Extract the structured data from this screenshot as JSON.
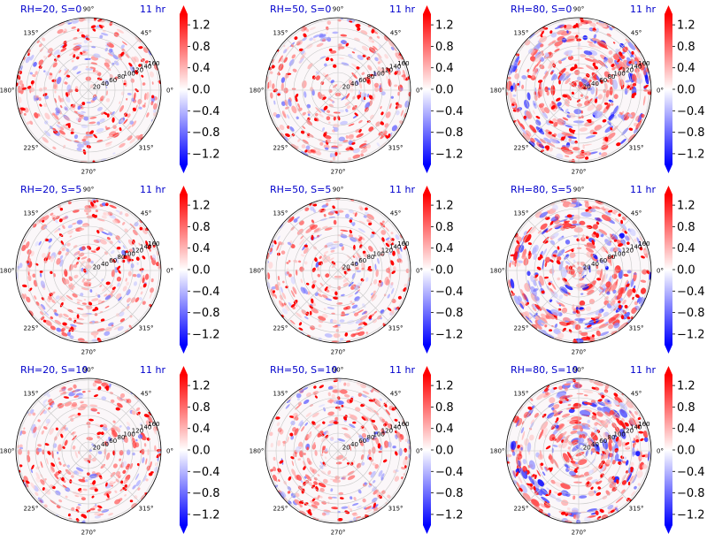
{
  "chart_data": [
    {
      "type": "polar-heatmap",
      "title_left": "RH=20, S=0",
      "title_right": "11 hr",
      "angle_ticks": [
        "0°",
        "45°",
        "90°",
        "135°",
        "180°",
        "225°",
        "270°",
        "315°"
      ],
      "radial_ticks": [
        "20",
        "40",
        "60",
        "80",
        "100",
        "120",
        "140",
        "160"
      ],
      "colorbar": {
        "ticks": [
          "1.2",
          "0.8",
          "0.4",
          "0.0",
          "−0.4",
          "−0.8",
          "−1.2"
        ],
        "range": [
          -1.4,
          1.4
        ],
        "cmap": "bwr",
        "extend": "both"
      },
      "intensity": 0.55
    },
    {
      "type": "polar-heatmap",
      "title_left": "RH=50, S=0",
      "title_right": "11 hr",
      "angle_ticks": [
        "0°",
        "45°",
        "90°",
        "135°",
        "180°",
        "225°",
        "270°",
        "315°"
      ],
      "radial_ticks": [
        "20",
        "40",
        "60",
        "80",
        "100",
        "120",
        "140",
        "160"
      ],
      "colorbar": {
        "ticks": [
          "1.2",
          "0.8",
          "0.4",
          "0.0",
          "−0.4",
          "−0.8",
          "−1.2"
        ],
        "range": [
          -1.4,
          1.4
        ],
        "cmap": "bwr",
        "extend": "both"
      },
      "intensity": 0.6
    },
    {
      "type": "polar-heatmap",
      "title_left": "RH=80, S=0",
      "title_right": "11 hr",
      "angle_ticks": [
        "0°",
        "45°",
        "90°",
        "135°",
        "180°",
        "225°",
        "270°",
        "315°"
      ],
      "radial_ticks": [
        "20",
        "40",
        "60",
        "80",
        "100",
        "120",
        "140",
        "160"
      ],
      "colorbar": {
        "ticks": [
          "1.2",
          "0.8",
          "0.4",
          "0.0",
          "−0.4",
          "−0.8",
          "−1.2"
        ],
        "range": [
          -1.4,
          1.4
        ],
        "cmap": "bwr",
        "extend": "both"
      },
      "intensity": 1.0
    },
    {
      "type": "polar-heatmap",
      "title_left": "RH=20, S=5",
      "title_right": "11 hr",
      "angle_ticks": [
        "0°",
        "45°",
        "90°",
        "135°",
        "180°",
        "225°",
        "270°",
        "315°"
      ],
      "radial_ticks": [
        "20",
        "40",
        "60",
        "80",
        "100",
        "120",
        "140",
        "160"
      ],
      "colorbar": {
        "ticks": [
          "1.2",
          "0.8",
          "0.4",
          "0.0",
          "−0.4",
          "−0.8",
          "−1.2"
        ],
        "range": [
          -1.4,
          1.4
        ],
        "cmap": "bwr",
        "extend": "both"
      },
      "intensity": 0.55
    },
    {
      "type": "polar-heatmap",
      "title_left": "RH=50, S=5",
      "title_right": "11 hr",
      "angle_ticks": [
        "0°",
        "45°",
        "90°",
        "135°",
        "180°",
        "225°",
        "270°",
        "315°"
      ],
      "radial_ticks": [
        "20",
        "40",
        "60",
        "80",
        "100",
        "120",
        "140",
        "160"
      ],
      "colorbar": {
        "ticks": [
          "1.2",
          "0.8",
          "0.4",
          "0.0",
          "−0.4",
          "−0.8",
          "−1.2"
        ],
        "range": [
          -1.4,
          1.4
        ],
        "cmap": "bwr",
        "extend": "both"
      },
      "intensity": 0.6
    },
    {
      "type": "polar-heatmap",
      "title_left": "RH=80, S=5",
      "title_right": "11 hr",
      "angle_ticks": [
        "0°",
        "45°",
        "90°",
        "135°",
        "180°",
        "225°",
        "270°",
        "315°"
      ],
      "radial_ticks": [
        "20",
        "40",
        "60",
        "80",
        "100",
        "120",
        "140",
        "160"
      ],
      "colorbar": {
        "ticks": [
          "1.2",
          "0.8",
          "0.4",
          "0.0",
          "−0.4",
          "−0.8",
          "−1.2"
        ],
        "range": [
          -1.4,
          1.4
        ],
        "cmap": "bwr",
        "extend": "both"
      },
      "intensity": 1.0
    },
    {
      "type": "polar-heatmap",
      "title_left": "RH=20, S=10",
      "title_right": "11 hr",
      "angle_ticks": [
        "0°",
        "45°",
        "90°",
        "135°",
        "180°",
        "225°",
        "270°",
        "315°"
      ],
      "radial_ticks": [
        "20",
        "40",
        "60",
        "80",
        "100",
        "120",
        "140",
        "160"
      ],
      "colorbar": {
        "ticks": [
          "1.2",
          "0.8",
          "0.4",
          "0.0",
          "−0.4",
          "−0.8",
          "−1.2"
        ],
        "range": [
          -1.4,
          1.4
        ],
        "cmap": "bwr",
        "extend": "both"
      },
      "intensity": 0.55
    },
    {
      "type": "polar-heatmap",
      "title_left": "RH=50, S=10",
      "title_right": "11 hr",
      "angle_ticks": [
        "0°",
        "45°",
        "90°",
        "135°",
        "180°",
        "225°",
        "270°",
        "315°"
      ],
      "radial_ticks": [
        "20",
        "40",
        "60",
        "80",
        "100",
        "120",
        "140",
        "160"
      ],
      "colorbar": {
        "ticks": [
          "1.2",
          "0.8",
          "0.4",
          "0.0",
          "−0.4",
          "−0.8",
          "−1.2"
        ],
        "range": [
          -1.4,
          1.4
        ],
        "cmap": "bwr",
        "extend": "both"
      },
      "intensity": 0.6
    },
    {
      "type": "polar-heatmap",
      "title_left": "RH=80, S=10",
      "title_right": "11 hr",
      "angle_ticks": [
        "0°",
        "45°",
        "90°",
        "135°",
        "180°",
        "225°",
        "270°",
        "315°"
      ],
      "radial_ticks": [
        "20",
        "40",
        "60",
        "80",
        "100",
        "120",
        "140",
        "160"
      ],
      "colorbar": {
        "ticks": [
          "1.2",
          "0.8",
          "0.4",
          "0.0",
          "−0.4",
          "−0.8",
          "−1.2"
        ],
        "range": [
          -1.4,
          1.4
        ],
        "cmap": "bwr",
        "extend": "both"
      },
      "intensity": 1.0
    }
  ]
}
